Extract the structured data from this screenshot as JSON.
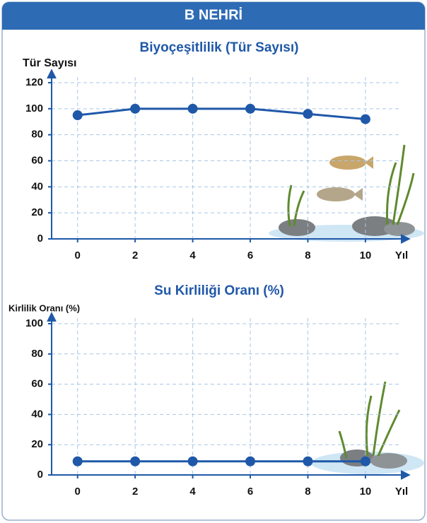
{
  "header": {
    "title": "B NEHRİ"
  },
  "chart_data": [
    {
      "type": "line",
      "title": "Biyoçeşitlilik (Tür Sayısı)",
      "y_label": "Tür Sayısı",
      "x_label": "Yıl",
      "x": [
        0,
        2,
        4,
        6,
        8,
        10
      ],
      "values": [
        95,
        100,
        100,
        100,
        96,
        92
      ],
      "color": "#1f58a8",
      "xlim": [
        -1,
        11.5
      ],
      "xticks": [
        0,
        2,
        4,
        6,
        8,
        10
      ],
      "ylim": [
        0,
        120
      ],
      "yticks": [
        0,
        20,
        40,
        60,
        80,
        100,
        120
      ],
      "grid": true
    },
    {
      "type": "line",
      "title": "Su Kirliliği Oranı (%)",
      "y_label": "Kirlilik Oranı (%)",
      "x_label": "Yıl",
      "x": [
        0,
        2,
        4,
        6,
        8,
        10
      ],
      "values": [
        9,
        9,
        9,
        9,
        9,
        9
      ],
      "color": "#1f58a8",
      "xlim": [
        -1,
        11.5
      ],
      "xticks": [
        0,
        2,
        4,
        6,
        8,
        10
      ],
      "ylim": [
        0,
        100
      ],
      "yticks": [
        0,
        20,
        40,
        60,
        80,
        100
      ],
      "grid": true
    }
  ]
}
